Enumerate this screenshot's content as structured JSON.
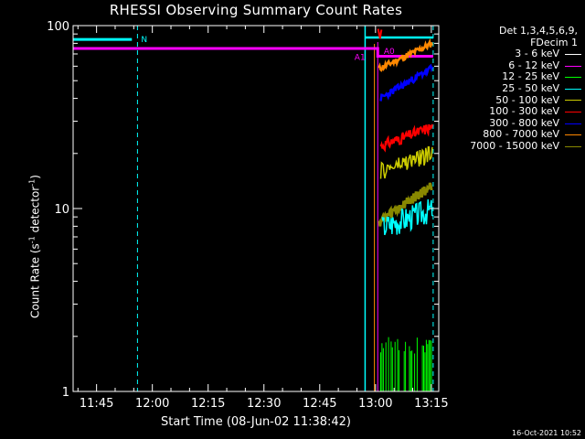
{
  "chart_data": {
    "type": "line",
    "title": "RHESSI Observing Summary Count Rates",
    "xlabel": "Start Time (08-Jun-02 11:38:42)",
    "ylabel_main": "Count Rate (s",
    "ylabel_sup1": "-1",
    "ylabel_mid": " detector",
    "ylabel_sup2": "-1",
    "ylabel_end": ")",
    "y_scale": "log",
    "ylim": [
      1,
      100
    ],
    "xlim": [
      "11:38:42",
      "13:17:00"
    ],
    "x_tick_labels": [
      "11:45",
      "12:00",
      "12:15",
      "12:30",
      "12:45",
      "13:00",
      "13:15"
    ],
    "x_tick_minutes": [
      705,
      720,
      735,
      750,
      765,
      780,
      795
    ],
    "y_tick_labels": [
      "1",
      "10",
      "100"
    ],
    "y_tick_values": [
      1,
      10,
      100
    ],
    "legend_header": [
      "Det 1,3,4,5,6,9,",
      "FDecim 1"
    ],
    "series": [
      {
        "name": "3 - 6 keV",
        "color": "#ffffff"
      },
      {
        "name": "6 - 12 keV",
        "color": "#ff00ff",
        "points": [
          [
            698.7,
            75
          ],
          [
            780.6,
            75
          ],
          [
            780.6,
            68
          ],
          [
            795.5,
            68
          ]
        ]
      },
      {
        "name": "12 - 25 keV",
        "color": "#00ff00"
      },
      {
        "name": "25 - 50 keV",
        "color": "#00ffff",
        "points": [
          [
            698.7,
            84
          ],
          [
            714.5,
            84
          ]
        ]
      },
      {
        "name": "50 - 100 keV",
        "color": "#cccc00"
      },
      {
        "name": "100 - 300 keV",
        "color": "#ff0000"
      },
      {
        "name": "300 - 800 keV",
        "color": "#0000ff"
      },
      {
        "name": "800 - 7000 keV",
        "color": "#ff8800"
      },
      {
        "name": "7000 - 15000 keV",
        "color": "#888800"
      }
    ],
    "annotations": [
      {
        "text": "N",
        "minute": 716
      },
      {
        "text": "A0",
        "minute": 781
      },
      {
        "text": "A1",
        "minute": 778
      }
    ],
    "footer_stamp": "16-Oct-2021 10:52"
  }
}
